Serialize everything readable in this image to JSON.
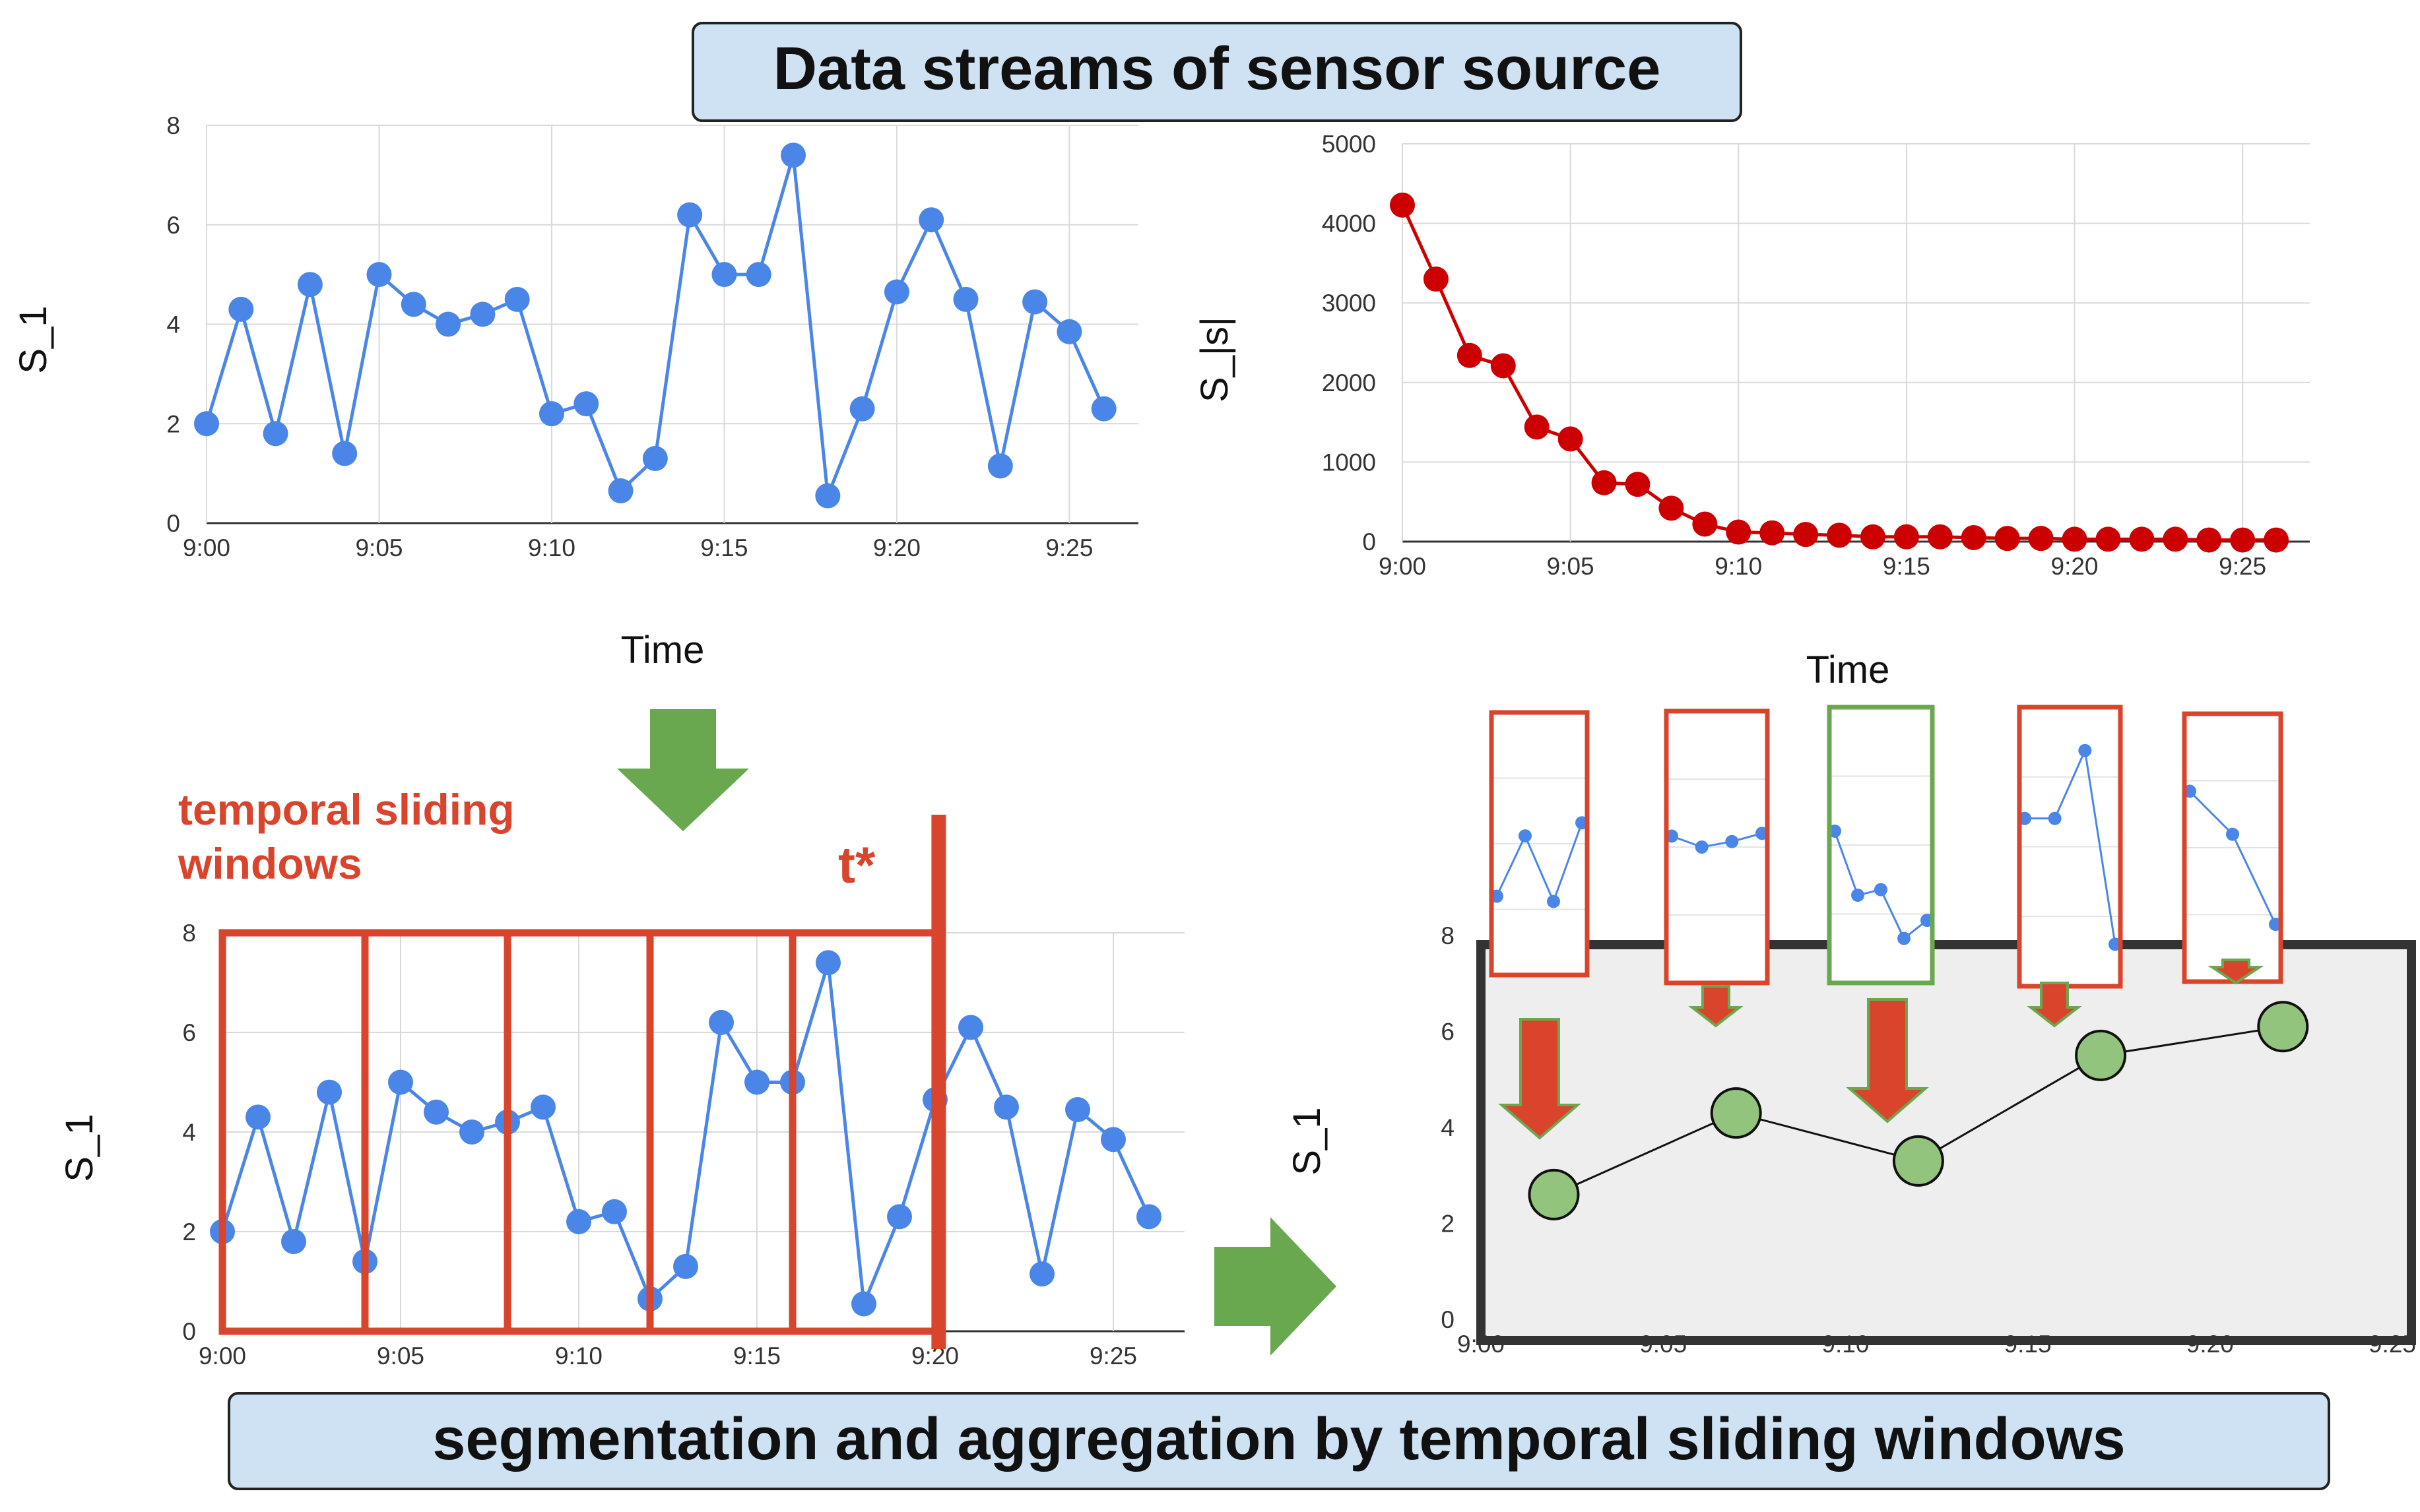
{
  "title_banner": "Data streams of sensor source",
  "bottom_banner": "segmentation and aggregation by temporal sliding windows",
  "colors": {
    "banner_fill": "#cfe2f3",
    "blue_series": "#4a86e8",
    "red_series": "#cc0000",
    "window_red": "#d9452c",
    "arrow_green": "#6aa84f",
    "agg_green": "#93c47d",
    "agg_panel": "#eeeeee"
  },
  "sliding_label": {
    "line1": "temporal sliding",
    "line2": "windows"
  },
  "t_star": "t*",
  "chart_data": [
    {
      "id": "s1-top",
      "type": "line",
      "title": "",
      "xlabel": "Time",
      "ylabel": "S_1",
      "ylim": [
        0,
        8
      ],
      "yticks": [
        0,
        2,
        4,
        6,
        8
      ],
      "xlim": [
        0,
        27
      ],
      "xticks": [
        0,
        5,
        10,
        15,
        20,
        25
      ],
      "xtick_labels": [
        "9:00",
        "9:05",
        "9:10",
        "9:15",
        "9:20",
        "9:25"
      ],
      "values": [
        2.0,
        4.3,
        1.8,
        4.8,
        1.4,
        5.0,
        4.4,
        4.0,
        4.2,
        4.5,
        2.2,
        2.4,
        0.65,
        1.3,
        6.2,
        5.0,
        5.0,
        7.4,
        0.55,
        2.3,
        4.65,
        6.1,
        4.5,
        1.15,
        4.45,
        3.85,
        2.3
      ]
    },
    {
      "id": "s-s-top",
      "type": "line",
      "title": "",
      "xlabel": "Time",
      "ylabel": "S_|s|",
      "ylim": [
        0,
        5000
      ],
      "yticks": [
        0,
        1000,
        2000,
        3000,
        4000,
        5000
      ],
      "xlim": [
        0,
        27
      ],
      "xticks": [
        0,
        5,
        10,
        15,
        20,
        25
      ],
      "xtick_labels": [
        "9:00",
        "9:05",
        "9:10",
        "9:15",
        "9:20",
        "9:25"
      ],
      "values": [
        4230,
        3300,
        2340,
        2210,
        1440,
        1290,
        740,
        720,
        420,
        220,
        120,
        110,
        90,
        80,
        60,
        60,
        60,
        50,
        40,
        40,
        30,
        30,
        30,
        30,
        20,
        20,
        20
      ]
    },
    {
      "id": "s1-windows",
      "type": "line",
      "title": "",
      "xlabel": "",
      "ylabel": "S_1",
      "ylim": [
        0,
        8
      ],
      "yticks": [
        0,
        2,
        4,
        6,
        8
      ],
      "xlim": [
        0,
        27
      ],
      "xticks": [
        0,
        5,
        10,
        15,
        20,
        25
      ],
      "xtick_labels": [
        "9:00",
        "9:05",
        "9:10",
        "9:15",
        "9:20",
        "9:25"
      ],
      "values": [
        2.0,
        4.3,
        1.8,
        4.8,
        1.4,
        5.0,
        4.4,
        4.0,
        4.2,
        4.5,
        2.2,
        2.4,
        0.65,
        1.3,
        6.2,
        5.0,
        5.0,
        7.4,
        0.55,
        2.3,
        4.65,
        6.1,
        4.5,
        1.15,
        4.45,
        3.85,
        2.3
      ],
      "windows": [
        [
          0,
          4
        ],
        [
          4,
          8
        ],
        [
          8,
          12
        ],
        [
          12,
          16
        ],
        [
          16,
          20
        ]
      ],
      "t_star_x": 20.1
    },
    {
      "id": "s1-aggregated",
      "type": "line",
      "title": "",
      "xlabel": "",
      "ylabel": "S_1",
      "ylim": [
        0,
        8
      ],
      "yticks": [
        0,
        2,
        4,
        6,
        8
      ],
      "xlim": [
        0,
        25
      ],
      "xticks": [
        0,
        5,
        10,
        15,
        20,
        25
      ],
      "xtick_labels": [
        "9:00",
        "9:05",
        "9:10",
        "9:15",
        "9:20",
        "9:25"
      ],
      "x": [
        2,
        7,
        12,
        17,
        22
      ],
      "values": [
        2.6,
        4.3,
        3.3,
        5.5,
        6.1
      ]
    }
  ],
  "thumbnails": [
    {
      "window": [
        0,
        3
      ],
      "frame": "red"
    },
    {
      "window": [
        6,
        9
      ],
      "frame": "red"
    },
    {
      "window": [
        9,
        13
      ],
      "frame": "green"
    },
    {
      "window": [
        15,
        18
      ],
      "frame": "red"
    },
    {
      "window": [
        21,
        23
      ],
      "frame": "red"
    }
  ]
}
